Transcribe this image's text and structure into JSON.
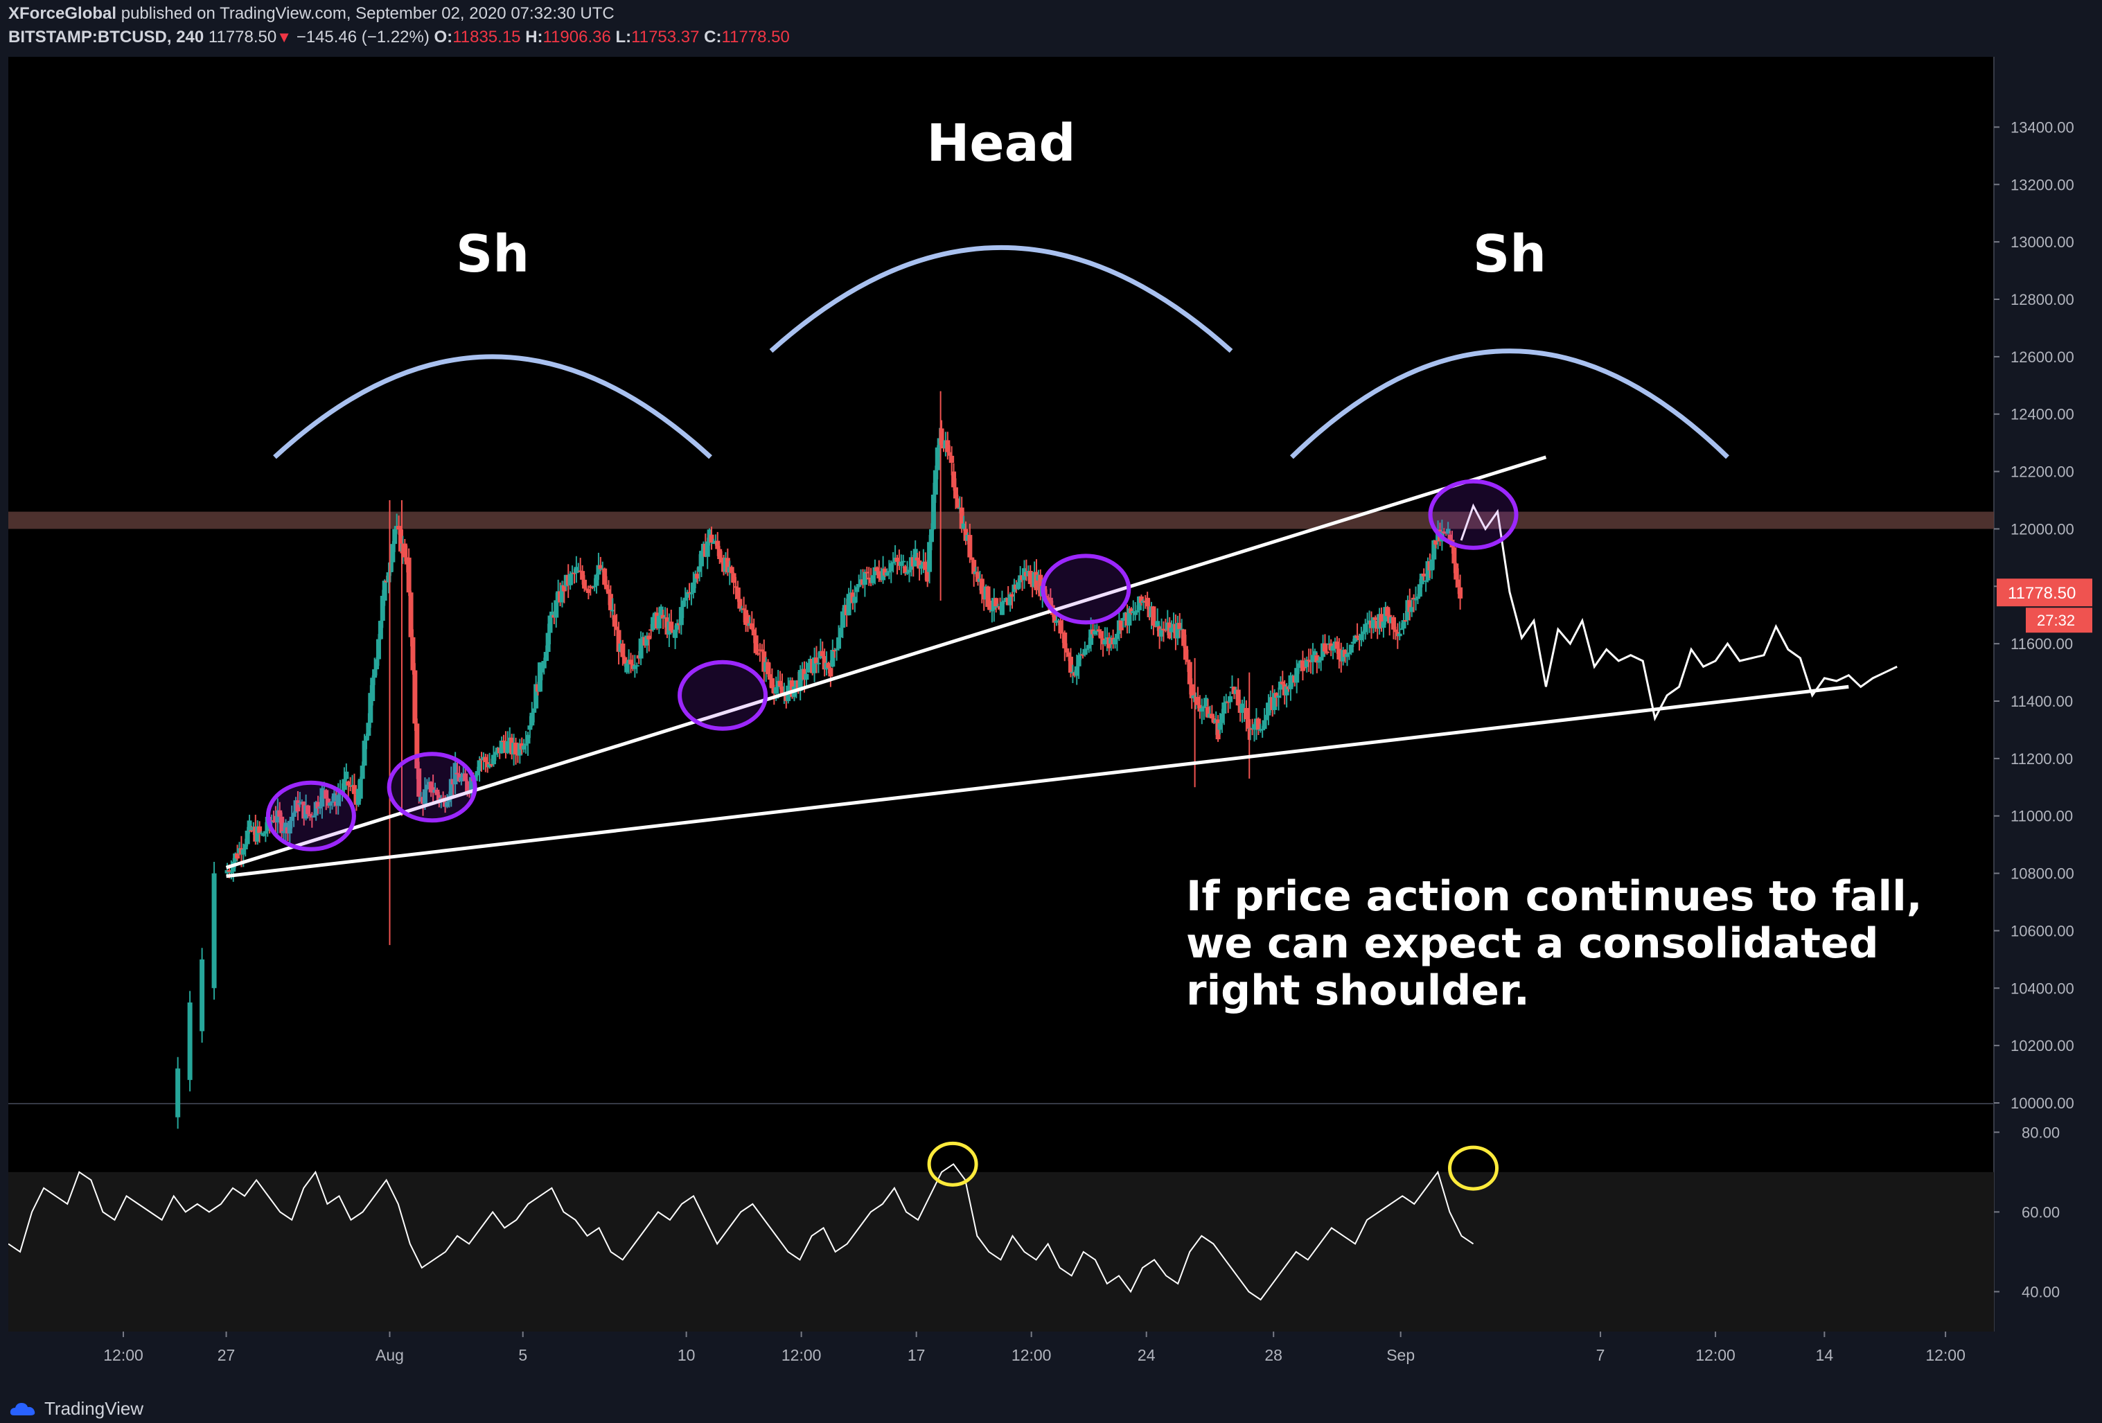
{
  "header": {
    "author": "XForceGlobal",
    "publish_text": "published on TradingView.com, September 02, 2020 07:32:30 UTC",
    "symbol": "BITSTAMP:BTCUSD, 240",
    "last_price": "11778.50",
    "change": "−145.46 (−1.22%)",
    "o_label": "O:",
    "o_value": "11835.15",
    "h_label": "H:",
    "h_value": "11906.36",
    "l_label": "L:",
    "l_value": "11753.37",
    "c_label": "C:",
    "c_value": "11778.50"
  },
  "colors": {
    "background": "#000000",
    "up": "#26a69a",
    "down": "#ef5350",
    "arc": "#a9c1f0",
    "circle": "#9c27ff",
    "rsi_circle": "#ffeb3b",
    "resistance_band": "#5a3a36",
    "price_tag": "#ef5350"
  },
  "chart_data": [
    {
      "type": "candlestick",
      "symbol": "BITSTAMP:BTCUSD",
      "interval": "240",
      "ylim": [
        10000,
        13500
      ],
      "y_ticks": [
        "10000.00",
        "10200.00",
        "10400.00",
        "10600.00",
        "10800.00",
        "11000.00",
        "11200.00",
        "11400.00",
        "11600.00",
        "11800.00",
        "12000.00",
        "12200.00",
        "12400.00",
        "12600.00",
        "12800.00",
        "13000.00",
        "13200.00",
        "13400.00"
      ],
      "x_ticks": [
        "12:00",
        "27",
        "Aug",
        "5",
        "10",
        "12:00",
        "17",
        "12:00",
        "24",
        "28",
        "Sep",
        "7",
        "12:00",
        "14",
        "12:00"
      ],
      "x_tick_pos": [
        9.5,
        18,
        31.5,
        42.5,
        56,
        65.5,
        75,
        84.5,
        94,
        104.5,
        115,
        131.5,
        141,
        150,
        160
      ],
      "x_range": [
        0,
        164
      ],
      "path_price": [
        [
          18,
          10800
        ],
        [
          19,
          10870
        ],
        [
          20,
          10950
        ],
        [
          21,
          10930
        ],
        [
          22,
          11000
        ],
        [
          23,
          10960
        ],
        [
          24,
          11040
        ],
        [
          25,
          11000
        ],
        [
          26,
          11080
        ],
        [
          27,
          11050
        ],
        [
          28,
          11120
        ],
        [
          29,
          11060
        ],
        [
          30,
          11400
        ],
        [
          31,
          11750
        ],
        [
          32,
          12000
        ],
        [
          33,
          11900
        ],
        [
          34,
          11050
        ],
        [
          35,
          11100
        ],
        [
          36,
          11050
        ],
        [
          37,
          11150
        ],
        [
          38,
          11100
        ],
        [
          39,
          11200
        ],
        [
          40,
          11180
        ],
        [
          41,
          11260
        ],
        [
          42,
          11220
        ],
        [
          43,
          11300
        ],
        [
          44,
          11500
        ],
        [
          45,
          11700
        ],
        [
          46,
          11800
        ],
        [
          47,
          11850
        ],
        [
          48,
          11800
        ],
        [
          49,
          11860
        ],
        [
          50,
          11700
        ],
        [
          51,
          11500
        ],
        [
          52,
          11560
        ],
        [
          53,
          11650
        ],
        [
          54,
          11700
        ],
        [
          55,
          11620
        ],
        [
          56,
          11760
        ],
        [
          57,
          11850
        ],
        [
          58,
          11980
        ],
        [
          59,
          11900
        ],
        [
          60,
          11800
        ],
        [
          61,
          11700
        ],
        [
          62,
          11580
        ],
        [
          63,
          11480
        ],
        [
          64,
          11420
        ],
        [
          65,
          11450
        ],
        [
          66,
          11500
        ],
        [
          67,
          11550
        ],
        [
          68,
          11520
        ],
        [
          69,
          11700
        ],
        [
          70,
          11780
        ],
        [
          71,
          11830
        ],
        [
          72,
          11850
        ],
        [
          73,
          11880
        ],
        [
          74,
          11870
        ],
        [
          75,
          11900
        ],
        [
          76,
          11850
        ],
        [
          77,
          12350
        ],
        [
          78,
          12200
        ],
        [
          79,
          12000
        ],
        [
          80,
          11850
        ],
        [
          81,
          11750
        ],
        [
          82,
          11700
        ],
        [
          83,
          11780
        ],
        [
          84,
          11850
        ],
        [
          85,
          11820
        ],
        [
          86,
          11760
        ],
        [
          87,
          11640
        ],
        [
          88,
          11500
        ],
        [
          89,
          11580
        ],
        [
          90,
          11650
        ],
        [
          91,
          11600
        ],
        [
          92,
          11680
        ],
        [
          93,
          11700
        ],
        [
          94,
          11760
        ],
        [
          95,
          11660
        ],
        [
          96,
          11640
        ],
        [
          97,
          11650
        ],
        [
          98,
          11400
        ],
        [
          99,
          11380
        ],
        [
          100,
          11300
        ],
        [
          101,
          11450
        ],
        [
          102,
          11360
        ],
        [
          103,
          11300
        ],
        [
          104,
          11350
        ],
        [
          105,
          11440
        ],
        [
          106,
          11470
        ],
        [
          107,
          11520
        ],
        [
          108,
          11560
        ],
        [
          109,
          11600
        ],
        [
          110,
          11560
        ],
        [
          111,
          11600
        ],
        [
          112,
          11640
        ],
        [
          113,
          11680
        ],
        [
          114,
          11700
        ],
        [
          115,
          11650
        ],
        [
          116,
          11760
        ],
        [
          117,
          11820
        ],
        [
          118,
          11960
        ],
        [
          119,
          11980
        ],
        [
          120,
          11778
        ]
      ],
      "projection": [
        [
          120,
          11960
        ],
        [
          121,
          12080
        ],
        [
          122,
          12000
        ],
        [
          123,
          12060
        ],
        [
          124,
          11780
        ],
        [
          125,
          11620
        ],
        [
          126,
          11680
        ],
        [
          127,
          11450
        ],
        [
          128,
          11650
        ],
        [
          129,
          11600
        ],
        [
          130,
          11680
        ],
        [
          131,
          11520
        ],
        [
          132,
          11580
        ],
        [
          133,
          11540
        ],
        [
          134,
          11560
        ],
        [
          135,
          11540
        ],
        [
          136,
          11340
        ],
        [
          137,
          11420
        ],
        [
          138,
          11450
        ],
        [
          139,
          11580
        ],
        [
          140,
          11520
        ],
        [
          141,
          11540
        ],
        [
          142,
          11600
        ],
        [
          143,
          11540
        ],
        [
          144,
          11550
        ],
        [
          145,
          11560
        ],
        [
          146,
          11660
        ],
        [
          147,
          11580
        ],
        [
          148,
          11550
        ],
        [
          149,
          11420
        ],
        [
          150,
          11480
        ],
        [
          151,
          11470
        ],
        [
          152,
          11490
        ],
        [
          153,
          11450
        ],
        [
          154,
          11480
        ],
        [
          155,
          11500
        ],
        [
          156,
          11520
        ]
      ],
      "trendlines": [
        {
          "name": "upper-wedge",
          "from": [
            18,
            10820
          ],
          "to": [
            127,
            12250
          ]
        },
        {
          "name": "lower-wedge",
          "from": [
            18,
            10790
          ],
          "to": [
            152,
            11450
          ]
        }
      ],
      "resistance_zone": [
        12000,
        12060
      ],
      "arcs": [
        {
          "name": "left-shoulder",
          "from": [
            22,
            12250
          ],
          "peak": [
            40,
            12600
          ],
          "to": [
            58,
            12250
          ]
        },
        {
          "name": "head",
          "from": [
            63,
            12620
          ],
          "peak": [
            82,
            12980
          ],
          "to": [
            101,
            12620
          ]
        },
        {
          "name": "right-shoulder",
          "from": [
            106,
            12250
          ],
          "peak": [
            124,
            12620
          ],
          "to": [
            142,
            12250
          ]
        }
      ],
      "highlight_circles": [
        [
          25,
          11000
        ],
        [
          35,
          11100
        ],
        [
          59,
          11420
        ],
        [
          89,
          11790
        ],
        [
          121,
          12050
        ]
      ],
      "labels": {
        "left_shoulder": "Sh",
        "head": "Head",
        "right_shoulder": "Sh"
      },
      "annotation": [
        "If price action continues to fall,",
        "we can expect a consolidated",
        "right shoulder."
      ],
      "price_tag": "11778.50",
      "countdown_tag": "27:32"
    },
    {
      "type": "line",
      "name": "RSI",
      "ylim": [
        30,
        87
      ],
      "y_ticks": [
        "40.00",
        "60.00",
        "80.00"
      ],
      "band": [
        30,
        70
      ],
      "values": [
        52,
        50,
        60,
        66,
        64,
        62,
        70,
        68,
        60,
        58,
        64,
        62,
        60,
        58,
        64,
        60,
        62,
        60,
        62,
        66,
        64,
        68,
        64,
        60,
        58,
        66,
        70,
        62,
        64,
        58,
        60,
        64,
        68,
        62,
        52,
        46,
        48,
        50,
        54,
        52,
        56,
        60,
        56,
        58,
        62,
        64,
        66,
        60,
        58,
        54,
        56,
        50,
        48,
        52,
        56,
        60,
        58,
        62,
        64,
        58,
        52,
        56,
        60,
        62,
        58,
        54,
        50,
        48,
        54,
        56,
        50,
        52,
        56,
        60,
        62,
        66,
        60,
        58,
        64,
        70,
        72,
        68,
        54,
        50,
        48,
        54,
        50,
        48,
        52,
        46,
        44,
        50,
        48,
        42,
        44,
        40,
        46,
        48,
        44,
        42,
        50,
        54,
        52,
        48,
        44,
        40,
        38,
        42,
        46,
        50,
        48,
        52,
        56,
        54,
        52,
        58,
        60,
        62,
        64,
        62,
        66,
        70,
        60,
        54,
        52
      ],
      "circles": [
        [
          78,
          72
        ],
        [
          121,
          71
        ]
      ]
    }
  ],
  "footer": {
    "brand": "TradingView"
  }
}
